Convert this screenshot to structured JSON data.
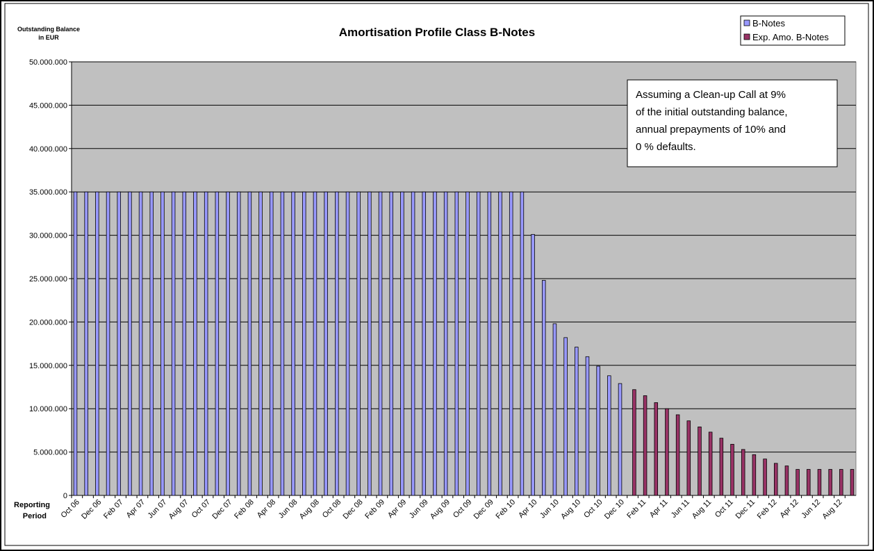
{
  "chart_data": {
    "type": "bar",
    "title": "Amortisation Profile Class B-Notes",
    "ylabel_lines": [
      "Outstanding Balance",
      "in EUR"
    ],
    "xlabel_lines": [
      "Reporting",
      "Period"
    ],
    "annotation_lines": [
      "Assuming a Clean-up Call at 9%",
      "of the initial outstanding balance,",
      "annual prepayments of 10% and",
      "0 % defaults."
    ],
    "categories": [
      "Oct 06",
      null,
      "Dec 06",
      null,
      "Feb 07",
      null,
      "Apr 07",
      null,
      "Jun 07",
      null,
      "Aug 07",
      null,
      "Oct 07",
      null,
      "Dec 07",
      null,
      "Feb 08",
      null,
      "Apr 08",
      null,
      "Jun 08",
      null,
      "Aug 08",
      null,
      "Oct 08",
      null,
      "Dec 08",
      null,
      "Feb 09",
      null,
      "Apr 09",
      null,
      "Jun 09",
      null,
      "Aug 09",
      null,
      "Oct 09",
      null,
      "Dec 09",
      null,
      "Feb 10",
      null,
      "Apr 10",
      null,
      "Jun 10",
      null,
      "Aug 10",
      null,
      "Oct 10",
      null,
      "Dec 10",
      null,
      "Feb 11",
      null,
      "Apr 11",
      null,
      "Jun 11",
      null,
      "Aug 11",
      null,
      "Oct 11",
      null,
      "Dec 11",
      null,
      "Feb 12",
      null,
      "Apr 12",
      null,
      "Jun 12",
      null,
      "Aug 12",
      null
    ],
    "series": [
      {
        "name": "B-Notes",
        "color": "#9999ff",
        "values": [
          35000000,
          35000000,
          35000000,
          35000000,
          35000000,
          35000000,
          35000000,
          35000000,
          35000000,
          35000000,
          35000000,
          35000000,
          35000000,
          35000000,
          35000000,
          35000000,
          35000000,
          35000000,
          35000000,
          35000000,
          35000000,
          35000000,
          35000000,
          35000000,
          35000000,
          35000000,
          35000000,
          35000000,
          35000000,
          35000000,
          35000000,
          35000000,
          35000000,
          35000000,
          35000000,
          35000000,
          35000000,
          35000000,
          35000000,
          35000000,
          35000000,
          35000000,
          30100000,
          24800000,
          19800000,
          18200000,
          17100000,
          16000000,
          14900000,
          13800000,
          12900000,
          null,
          null,
          null,
          null,
          null,
          null,
          null,
          null,
          null,
          null,
          null,
          null,
          null,
          null,
          null,
          null,
          null,
          null,
          null,
          null,
          null
        ]
      },
      {
        "name": "Exp. Amo. B-Notes",
        "color": "#993366",
        "values": [
          null,
          null,
          null,
          null,
          null,
          null,
          null,
          null,
          null,
          null,
          null,
          null,
          null,
          null,
          null,
          null,
          null,
          null,
          null,
          null,
          null,
          null,
          null,
          null,
          null,
          null,
          null,
          null,
          null,
          null,
          null,
          null,
          null,
          null,
          null,
          null,
          null,
          null,
          null,
          null,
          null,
          null,
          null,
          null,
          null,
          null,
          null,
          null,
          null,
          null,
          null,
          12200000,
          11500000,
          10700000,
          10000000,
          9300000,
          8600000,
          7900000,
          7300000,
          6600000,
          5900000,
          5300000,
          4700000,
          4200000,
          3700000,
          3400000,
          3000000,
          3000000,
          3000000,
          3000000,
          3000000,
          3000000
        ]
      }
    ],
    "ylim": [
      0,
      50000000
    ],
    "yticks": [
      {
        "value": 0,
        "label": "0"
      },
      {
        "value": 5000000,
        "label": "5.000.000"
      },
      {
        "value": 10000000,
        "label": "10.000.000"
      },
      {
        "value": 15000000,
        "label": "15.000.000"
      },
      {
        "value": 20000000,
        "label": "20.000.000"
      },
      {
        "value": 25000000,
        "label": "25.000.000"
      },
      {
        "value": 30000000,
        "label": "30.000.000"
      },
      {
        "value": 35000000,
        "label": "35.000.000"
      },
      {
        "value": 40000000,
        "label": "40.000.000"
      },
      {
        "value": 45000000,
        "label": "45.000.000"
      },
      {
        "value": 50000000,
        "label": "50.000.000"
      }
    ],
    "grid": true,
    "plot_background": "#c0c0c0",
    "legend": "top-right"
  }
}
